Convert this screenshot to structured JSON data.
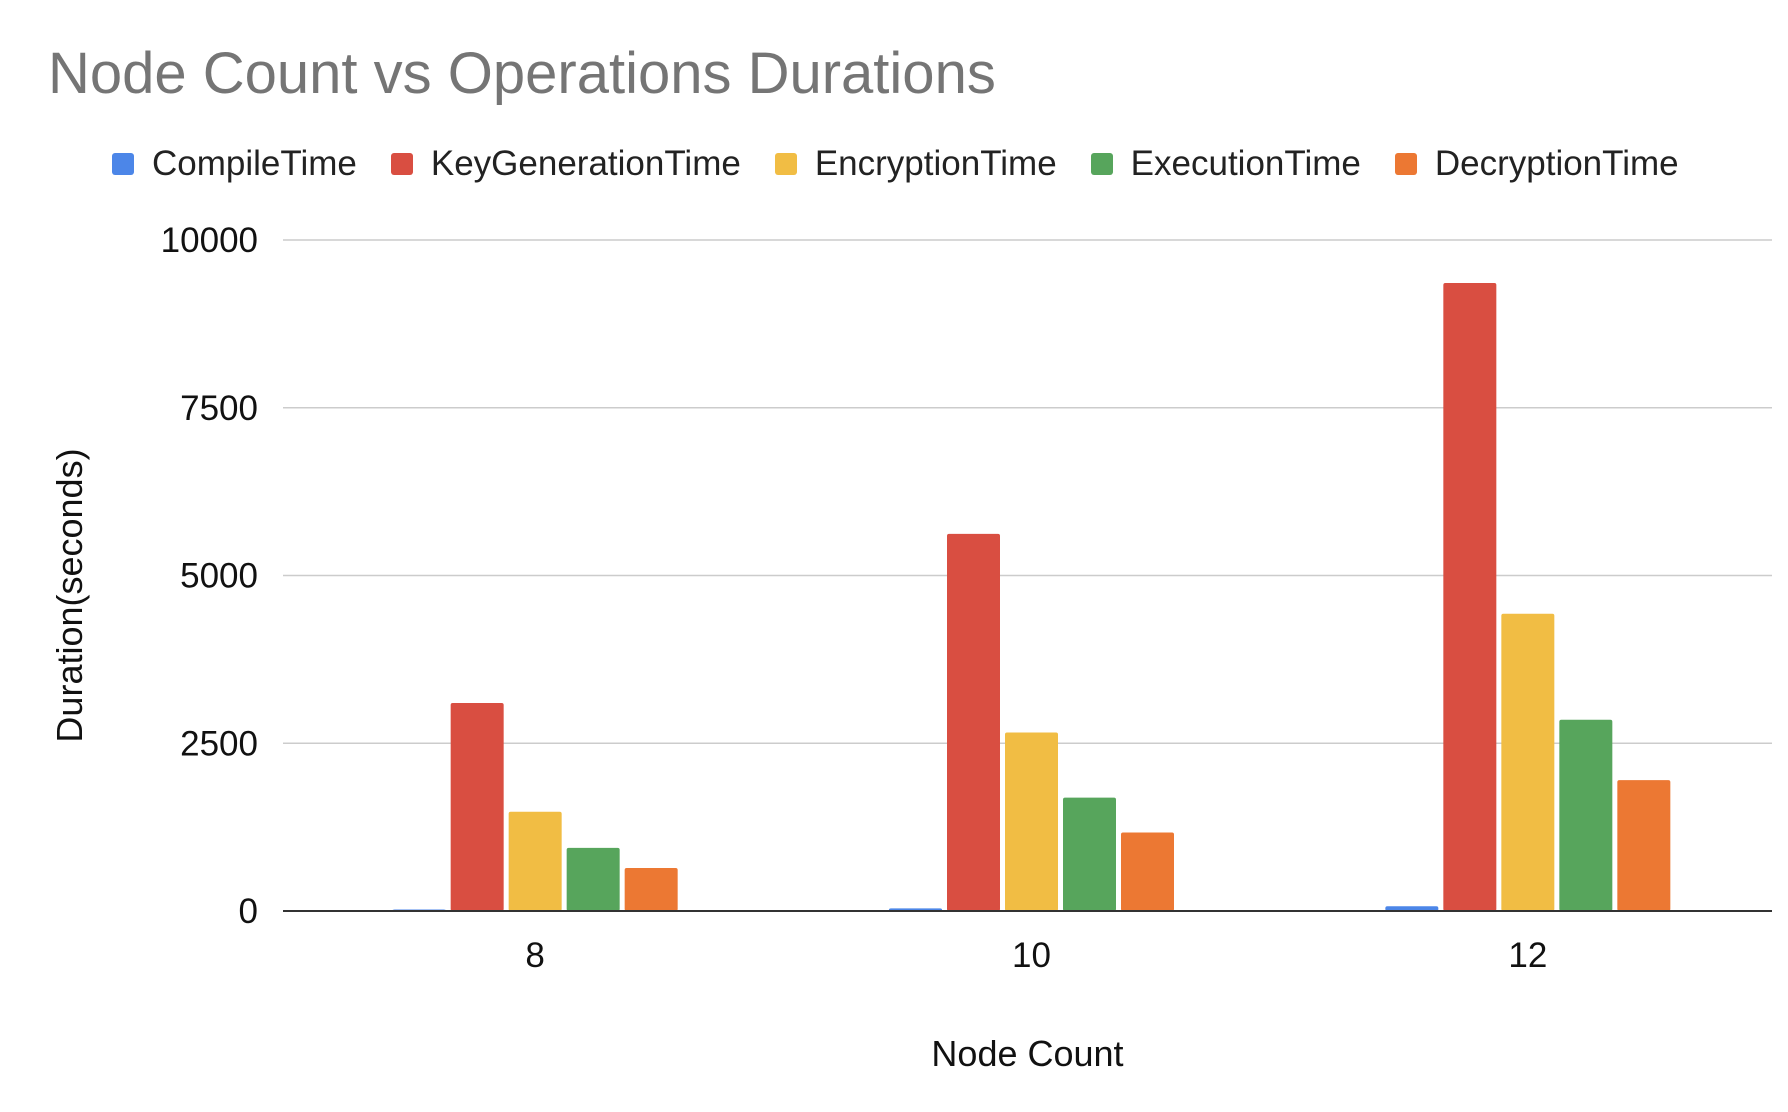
{
  "chart_data": {
    "type": "bar",
    "title": "Node Count vs Operations Durations",
    "xlabel": "Node Count",
    "ylabel": "Duration(seconds)",
    "categories": [
      "8",
      "10",
      "12"
    ],
    "ylim": [
      0,
      10000
    ],
    "yticks": [
      0,
      2500,
      5000,
      7500,
      10000
    ],
    "grid": true,
    "legend_position": "top",
    "series": [
      {
        "name": "CompileTime",
        "color": "#4c86e8",
        "values": [
          15,
          40,
          70
        ]
      },
      {
        "name": "KeyGenerationTime",
        "color": "#d94e41",
        "values": [
          3100,
          5620,
          9360
        ]
      },
      {
        "name": "EncryptionTime",
        "color": "#f1bd44",
        "values": [
          1480,
          2660,
          4430
        ]
      },
      {
        "name": "ExecutionTime",
        "color": "#57a55c",
        "values": [
          940,
          1690,
          2850
        ]
      },
      {
        "name": "DecryptionTime",
        "color": "#ec7833",
        "values": [
          640,
          1170,
          1950
        ]
      }
    ]
  }
}
